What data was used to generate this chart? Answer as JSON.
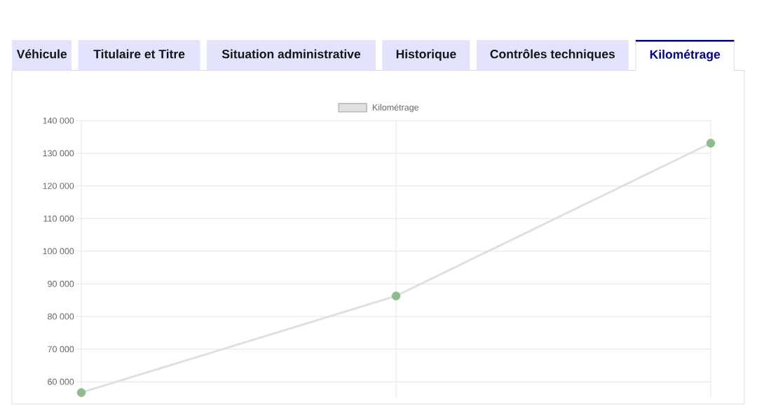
{
  "chart_data": {
    "type": "line",
    "title": "Kilométrage",
    "annotations": [
      "Véhicule",
      "Titulaire et Titre",
      "Situation administrative",
      "Historique",
      "Contrôles techniques"
    ],
    "categories": [
      null,
      null,
      null
    ],
    "series": [
      {
        "name": "Kilométrage",
        "color": "#e0e0e0",
        "colors": [
          "#8fbc8f",
          "#8fbc8f",
          "#8fbc8f"
        ],
        "values": [
          56700,
          86300,
          133100
        ]
      }
    ],
    "ylim": [
      55000,
      140000
    ],
    "yticks": [
      {
        "value": 60000,
        "label": "60 000"
      },
      {
        "value": 70000,
        "label": "70 000"
      },
      {
        "value": 80000,
        "label": "80 000"
      },
      {
        "value": 90000,
        "label": "90 000"
      },
      {
        "value": 100000,
        "label": "100 000"
      },
      {
        "value": 110000,
        "label": "110 000"
      },
      {
        "value": 120000,
        "label": "120 000"
      },
      {
        "value": 130000,
        "label": "130 000"
      },
      {
        "value": 140000,
        "label": "140 000"
      }
    ],
    "grid": true,
    "legend": "top",
    "marker": "circle",
    "line_style": "solid",
    "tick_labels": "y"
  }
}
